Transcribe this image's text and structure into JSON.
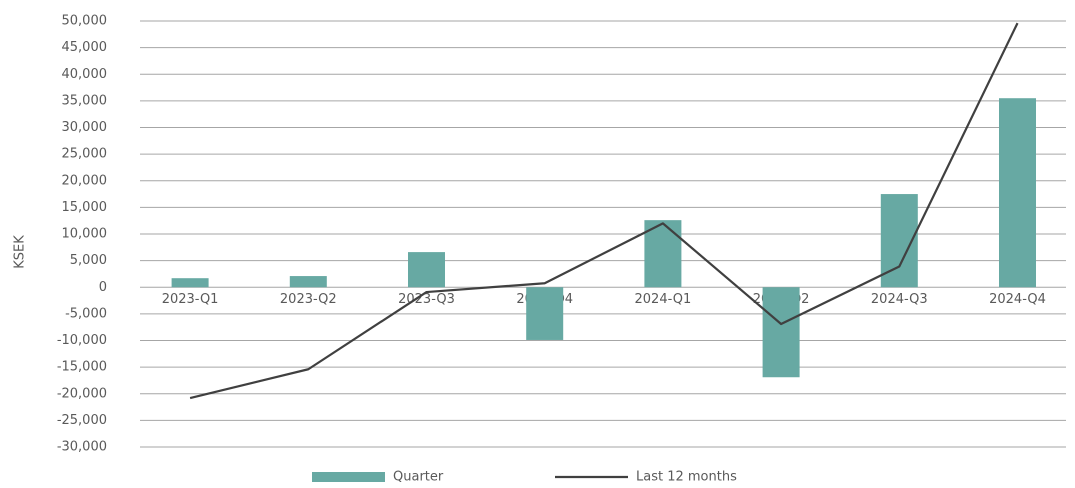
{
  "chart_data": {
    "type": "bar",
    "y_label": "KSEK",
    "categories": [
      "2023-Q1",
      "2023-Q2",
      "2023-Q3",
      "2023-Q4",
      "2024-Q1",
      "2024-Q2",
      "2024-Q3",
      "2024-Q4"
    ],
    "series": [
      {
        "name": "Quarter",
        "type": "bar",
        "color": "#67a9a3",
        "values": [
          1700,
          2100,
          6600,
          -9900,
          12600,
          -16900,
          17500,
          35500
        ]
      },
      {
        "name": "Last 12 months",
        "type": "line",
        "color": "#404040",
        "values": [
          -20800,
          -15400,
          -900,
          750,
          12000,
          -6900,
          3900,
          49600
        ]
      }
    ],
    "ylim": [
      -30000,
      50000
    ],
    "yticks": [
      {
        "value": -30000,
        "label": "-30,000"
      },
      {
        "value": -25000,
        "label": "-25,000"
      },
      {
        "value": -20000,
        "label": "-20,000"
      },
      {
        "value": -15000,
        "label": "-15,000"
      },
      {
        "value": -10000,
        "label": "-10,000"
      },
      {
        "value": -5000,
        "label": "-5,000"
      },
      0,
      {
        "value": 5000,
        "label": "5,000"
      },
      {
        "value": 10000,
        "label": "10,000"
      },
      {
        "value": 15000,
        "label": "15,000"
      },
      {
        "value": 20000,
        "label": "20,000"
      },
      {
        "value": 25000,
        "label": "25,000"
      },
      {
        "value": 30000,
        "label": "30,000"
      },
      {
        "value": 35000,
        "label": "35,000"
      },
      {
        "value": 40000,
        "label": "40,000"
      },
      {
        "value": 45000,
        "label": "45,000"
      },
      {
        "value": 50000,
        "label": "50,000"
      }
    ],
    "grid": true,
    "legend": "bottom"
  }
}
